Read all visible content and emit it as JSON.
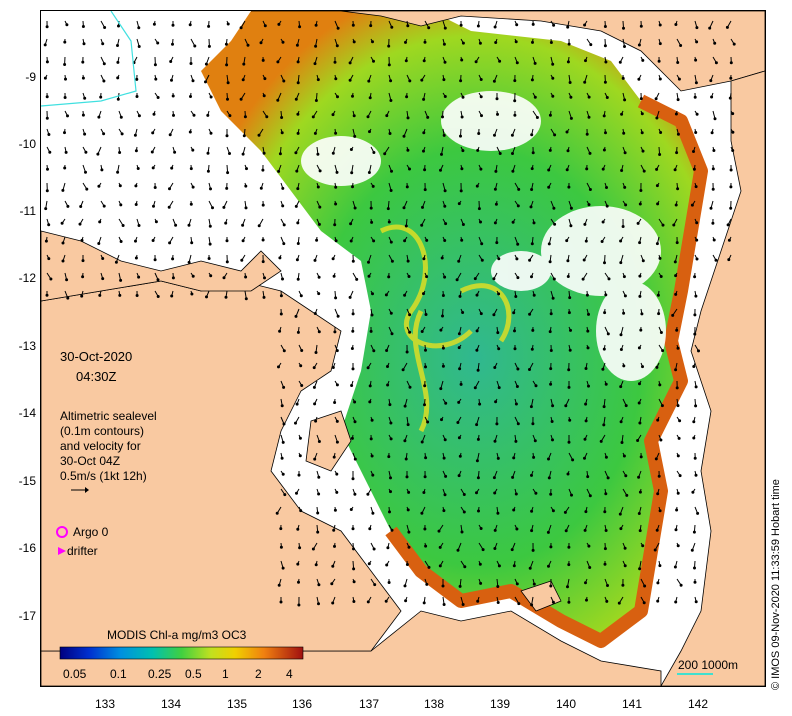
{
  "map": {
    "date": "30-Oct-2020",
    "time": "04:30Z",
    "legend_text": [
      "Altimetric sealevel",
      "(0.1m contours)",
      "and velocity for",
      "30-Oct 04Z",
      "0.5m/s (1kt 12h)"
    ],
    "argo_label": "Argo 0",
    "drifter_label": "drifter",
    "colorbar_title": "MODIS Chl-a mg/m3 OC3",
    "colorbar_ticks": [
      "0.05",
      "0.1",
      "0.25",
      "0.5",
      "1",
      "2",
      "4"
    ],
    "scale_label": "200  1000m",
    "credit": "© IMOS 09-Nov-2020 11:33:59 Hobart time",
    "y_axis_labels": [
      "-9",
      "-10",
      "-11",
      "-12",
      "-13",
      "-14",
      "-15",
      "-16",
      "-17"
    ],
    "x_axis_labels": [
      "133",
      "134",
      "135",
      "136",
      "137",
      "138",
      "139",
      "140",
      "141",
      "142"
    ],
    "colors": {
      "land": "#f9c9a1",
      "ocean_green": "#3cc840",
      "chl_low": "#00a0a0",
      "chl_high": "#b04010",
      "argo": "#ff00ff",
      "scale_bar": "#40e0d0"
    }
  }
}
